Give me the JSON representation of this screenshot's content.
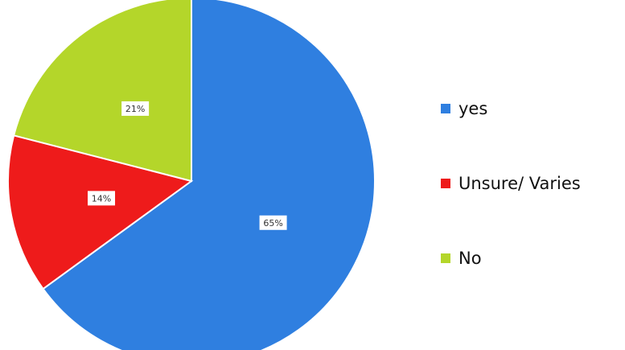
{
  "chart_data": {
    "type": "pie",
    "title": "",
    "categories": [
      "yes",
      "Unsure/ Varies",
      "No"
    ],
    "values": [
      65,
      14,
      21
    ],
    "data_labels": [
      "65%",
      "14%",
      "21%"
    ],
    "colors": [
      "#2f7fe0",
      "#ee1b1b",
      "#b4d62a"
    ],
    "start_angle_degrees": 0,
    "direction": "clockwise",
    "legend_placement": "right"
  },
  "legend": {
    "items": [
      {
        "label": "yes",
        "color": "#2f7fe0"
      },
      {
        "label": "Unsure/ Varies",
        "color": "#ee1b1b"
      },
      {
        "label": "No",
        "color": "#b4d62a"
      }
    ]
  }
}
